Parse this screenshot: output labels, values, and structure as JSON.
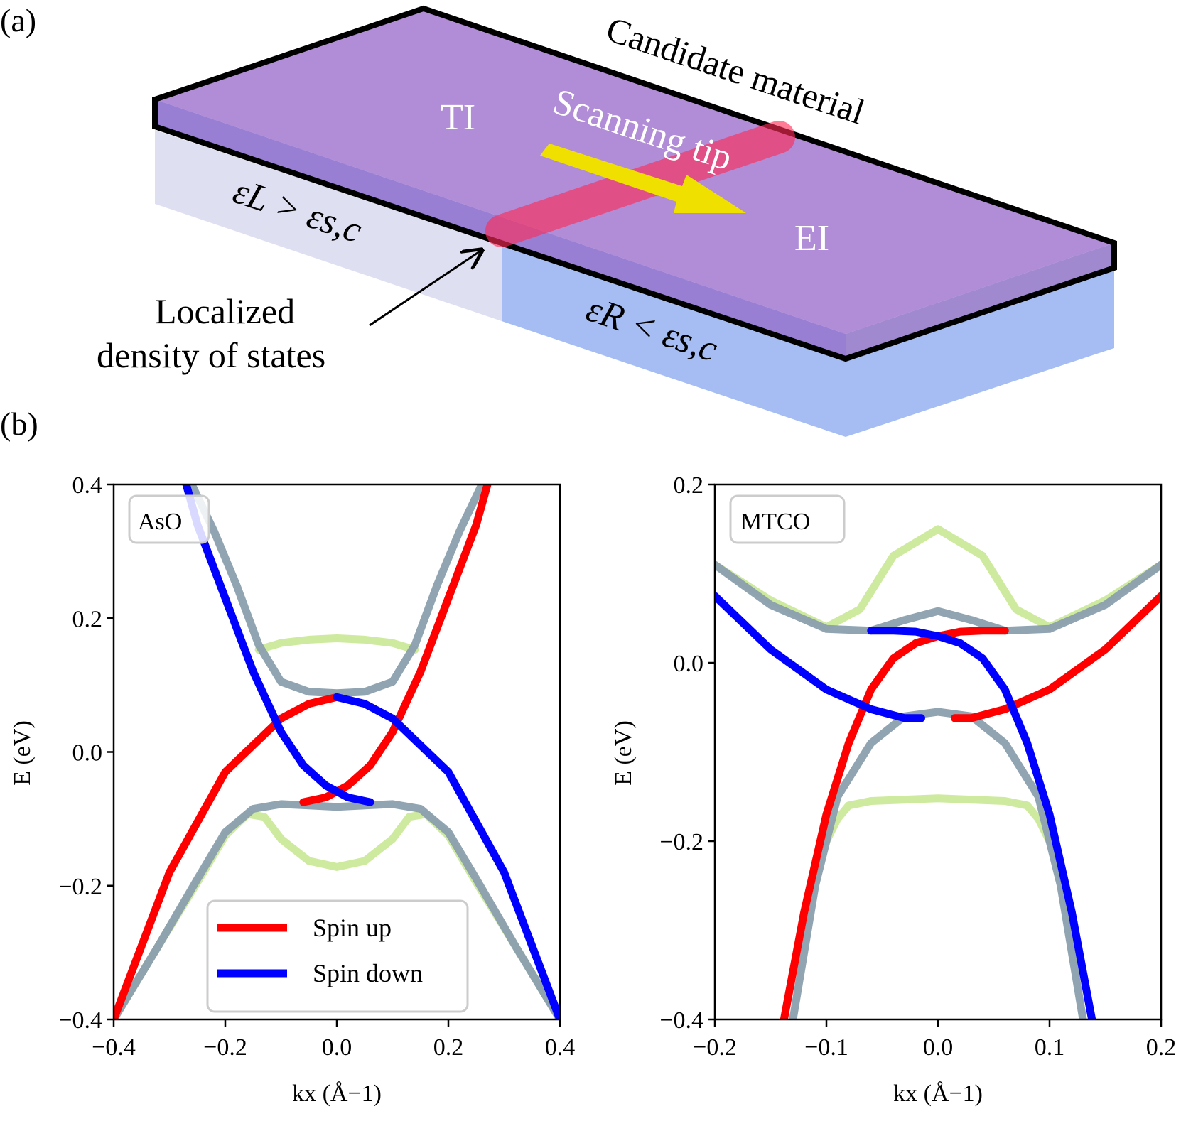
{
  "panel_a": {
    "label": "(a)",
    "candidate_label": "Candidate material",
    "scanning_label": "Scanning tip",
    "ti_label": "TI",
    "ei_label": "EI",
    "left_eps": "εL > εs,c",
    "right_eps": "εR < εs,c",
    "localized_line1": "Localized",
    "localized_line2": "density of states"
  },
  "panel_b": {
    "label": "(b)"
  },
  "chart_data": [
    {
      "type": "line",
      "title": "",
      "box_label": "AsO",
      "xlabel": "kx (Å−1)",
      "ylabel": "E (eV)",
      "xlim": [
        -0.4,
        0.4
      ],
      "ylim": [
        -0.4,
        0.4
      ],
      "xticks": [
        "−0.4",
        "−0.2",
        "0.0",
        "0.2",
        "0.4"
      ],
      "xtick_values": [
        -0.4,
        -0.2,
        0.0,
        0.2,
        0.4
      ],
      "yticks": [
        "−0.4",
        "−0.2",
        "0.0",
        "0.2",
        "0.4"
      ],
      "ytick_values": [
        -0.4,
        -0.2,
        0.0,
        0.2,
        0.4
      ],
      "legend": [
        {
          "name": "Spin up",
          "color": "#ff0000"
        },
        {
          "name": "Spin down",
          "color": "#0000ff"
        }
      ],
      "series": [
        {
          "name": "bulk-green-upper",
          "color": "#cbe99a",
          "x": [
            -0.14,
            -0.1,
            -0.05,
            0.0,
            0.05,
            0.1,
            0.14
          ],
          "y": [
            0.153,
            0.163,
            0.168,
            0.17,
            0.168,
            0.163,
            0.153
          ]
        },
        {
          "name": "bulk-green-lower",
          "color": "#cbe99a",
          "x": [
            -0.4,
            -0.32,
            -0.25,
            -0.2,
            -0.16,
            -0.13,
            -0.1,
            -0.05,
            0.0,
            0.05,
            0.1,
            0.13,
            0.16,
            0.2,
            0.25,
            0.32,
            0.4
          ],
          "y": [
            -0.4,
            -0.29,
            -0.195,
            -0.125,
            -0.093,
            -0.097,
            -0.13,
            -0.163,
            -0.172,
            -0.163,
            -0.13,
            -0.097,
            -0.093,
            -0.125,
            -0.195,
            -0.29,
            -0.4
          ]
        },
        {
          "name": "bulk-grey-upper",
          "color": "#8a9fae",
          "x": [
            -0.26,
            -0.22,
            -0.18,
            -0.14,
            -0.1,
            -0.05,
            0.0,
            0.05,
            0.1,
            0.14,
            0.18,
            0.22,
            0.26
          ],
          "y": [
            0.4,
            0.33,
            0.25,
            0.16,
            0.105,
            0.09,
            0.088,
            0.09,
            0.105,
            0.16,
            0.25,
            0.33,
            0.4
          ]
        },
        {
          "name": "bulk-grey-lower",
          "color": "#8a9fae",
          "x": [
            -0.4,
            -0.32,
            -0.25,
            -0.2,
            -0.15,
            -0.1,
            -0.05,
            0.0,
            0.05,
            0.1,
            0.15,
            0.2,
            0.25,
            0.32,
            0.4
          ],
          "y": [
            -0.4,
            -0.29,
            -0.19,
            -0.12,
            -0.085,
            -0.078,
            -0.08,
            -0.082,
            -0.08,
            -0.078,
            -0.085,
            -0.12,
            -0.19,
            -0.29,
            -0.4
          ]
        },
        {
          "name": "Spin up",
          "color": "#ff0000",
          "x": [
            -0.4,
            -0.3,
            -0.2,
            -0.1,
            -0.05,
            0.0
          ],
          "y": [
            -0.4,
            -0.18,
            -0.03,
            0.05,
            0.072,
            0.082
          ]
        },
        {
          "name": "Spin up",
          "color": "#ff0000",
          "x": [
            -0.06,
            -0.02,
            0.02,
            0.06,
            0.1,
            0.15,
            0.2,
            0.25,
            0.27
          ],
          "y": [
            -0.075,
            -0.068,
            -0.05,
            -0.02,
            0.03,
            0.12,
            0.23,
            0.34,
            0.4
          ]
        },
        {
          "name": "Spin down",
          "color": "#0000ff",
          "x": [
            -0.27,
            -0.25,
            -0.2,
            -0.15,
            -0.1,
            -0.06,
            -0.02,
            0.02,
            0.06
          ],
          "y": [
            0.4,
            0.34,
            0.23,
            0.12,
            0.03,
            -0.02,
            -0.05,
            -0.068,
            -0.075
          ]
        },
        {
          "name": "Spin down",
          "color": "#0000ff",
          "x": [
            0.0,
            0.05,
            0.1,
            0.2,
            0.3,
            0.4
          ],
          "y": [
            0.082,
            0.072,
            0.05,
            -0.03,
            -0.18,
            -0.4
          ]
        }
      ]
    },
    {
      "type": "line",
      "title": "",
      "box_label": "MTCO",
      "xlabel": "kx (Å−1)",
      "ylabel": "E (eV)",
      "xlim": [
        -0.2,
        0.2
      ],
      "ylim": [
        -0.4,
        0.2
      ],
      "xticks": [
        "−0.2",
        "−0.1",
        "0.0",
        "0.1",
        "0.2"
      ],
      "xtick_values": [
        -0.2,
        -0.1,
        0.0,
        0.1,
        0.2
      ],
      "yticks": [
        "−0.4",
        "−0.2",
        "0.0",
        "0.2"
      ],
      "ytick_values": [
        -0.4,
        -0.2,
        0.0,
        0.2
      ],
      "series": [
        {
          "name": "bulk-green-upper",
          "color": "#cbe99a",
          "x": [
            -0.2,
            -0.15,
            -0.1,
            -0.07,
            -0.04,
            0.0,
            0.04,
            0.07,
            0.1,
            0.15,
            0.2
          ],
          "y": [
            0.11,
            0.07,
            0.04,
            0.06,
            0.12,
            0.15,
            0.12,
            0.06,
            0.04,
            0.07,
            0.11
          ]
        },
        {
          "name": "bulk-green-lower",
          "color": "#cbe99a",
          "x": [
            -0.1,
            -0.09,
            -0.08,
            -0.06,
            0.0,
            0.06,
            0.08,
            0.09,
            0.1
          ],
          "y": [
            -0.2,
            -0.175,
            -0.16,
            -0.155,
            -0.152,
            -0.155,
            -0.16,
            -0.175,
            -0.2
          ]
        },
        {
          "name": "bulk-grey-upper",
          "color": "#8a9fae",
          "x": [
            -0.2,
            -0.15,
            -0.1,
            -0.06,
            -0.03,
            0.0,
            0.03,
            0.06,
            0.1,
            0.15,
            0.2
          ],
          "y": [
            0.11,
            0.065,
            0.038,
            0.036,
            0.048,
            0.058,
            0.048,
            0.036,
            0.038,
            0.065,
            0.11
          ]
        },
        {
          "name": "bulk-grey-lower",
          "color": "#8a9fae",
          "x": [
            -0.13,
            -0.11,
            -0.09,
            -0.06,
            -0.03,
            0.0,
            0.03,
            0.06,
            0.09,
            0.11,
            0.13
          ],
          "y": [
            -0.4,
            -0.25,
            -0.15,
            -0.09,
            -0.06,
            -0.055,
            -0.06,
            -0.09,
            -0.15,
            -0.25,
            -0.4
          ]
        },
        {
          "name": "Spin up",
          "color": "#ff0000",
          "x": [
            -0.138,
            -0.12,
            -0.1,
            -0.08,
            -0.06,
            -0.04,
            -0.02,
            0.0,
            0.02,
            0.04,
            0.06
          ],
          "y": [
            -0.4,
            -0.28,
            -0.17,
            -0.09,
            -0.03,
            0.005,
            0.022,
            0.03,
            0.035,
            0.036,
            0.036
          ]
        },
        {
          "name": "Spin up",
          "color": "#ff0000",
          "x": [
            0.015,
            0.03,
            0.06,
            0.1,
            0.15,
            0.2
          ],
          "y": [
            -0.062,
            -0.062,
            -0.052,
            -0.03,
            0.015,
            0.075
          ]
        },
        {
          "name": "Spin down",
          "color": "#0000ff",
          "x": [
            -0.2,
            -0.15,
            -0.1,
            -0.06,
            -0.03,
            -0.015
          ],
          "y": [
            0.075,
            0.015,
            -0.03,
            -0.052,
            -0.062,
            -0.062
          ]
        },
        {
          "name": "Spin down",
          "color": "#0000ff",
          "x": [
            -0.06,
            -0.04,
            -0.02,
            0.0,
            0.02,
            0.04,
            0.06,
            0.08,
            0.1,
            0.12,
            0.138
          ],
          "y": [
            0.036,
            0.036,
            0.035,
            0.03,
            0.022,
            0.005,
            -0.03,
            -0.09,
            -0.17,
            -0.28,
            -0.4
          ]
        }
      ]
    }
  ]
}
